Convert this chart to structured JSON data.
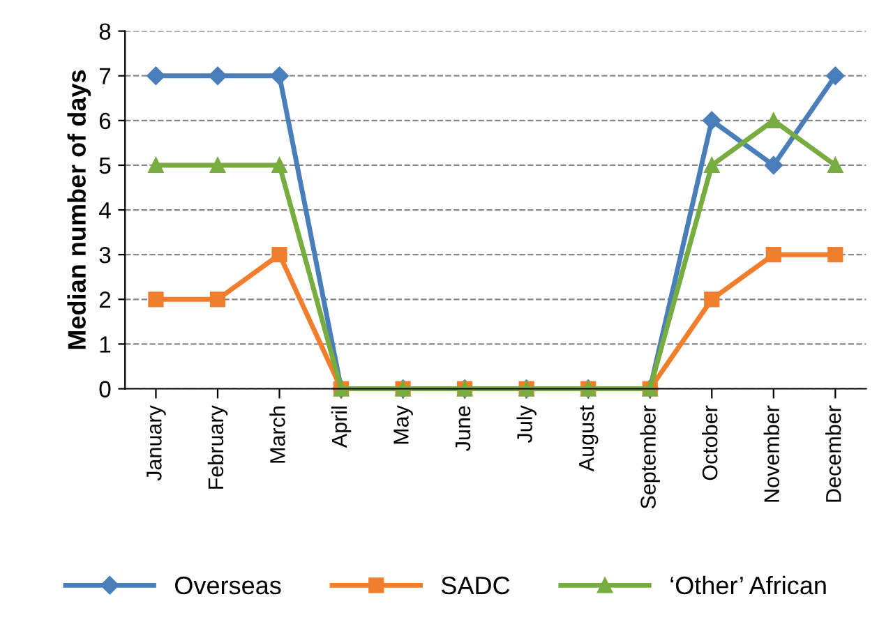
{
  "chart_data": {
    "type": "line",
    "ylabel": "Median number of days",
    "categories": [
      "January",
      "February",
      "March",
      "April",
      "May",
      "June",
      "July",
      "August",
      "September",
      "October",
      "November",
      "December"
    ],
    "series": [
      {
        "name": "Overseas",
        "color": "#4a7ebb",
        "marker": "diamond",
        "values": [
          7,
          7,
          7,
          0,
          0,
          0,
          0,
          0,
          0,
          6,
          5,
          7
        ]
      },
      {
        "name": "SADC",
        "color": "#f07e2c",
        "marker": "square",
        "values": [
          2,
          2,
          3,
          0,
          0,
          0,
          0,
          0,
          0,
          2,
          3,
          3
        ]
      },
      {
        "name": "‘Other’ African",
        "color": "#77ac3f",
        "marker": "triangle",
        "values": [
          5,
          5,
          5,
          0,
          0,
          0,
          0,
          0,
          0,
          5,
          6,
          5
        ]
      }
    ],
    "ylim": [
      0,
      8
    ],
    "yticks": [
      0,
      1,
      2,
      3,
      4,
      5,
      6,
      7,
      8
    ],
    "grid": "y",
    "legend": "bottom",
    "line_style": "solid"
  }
}
